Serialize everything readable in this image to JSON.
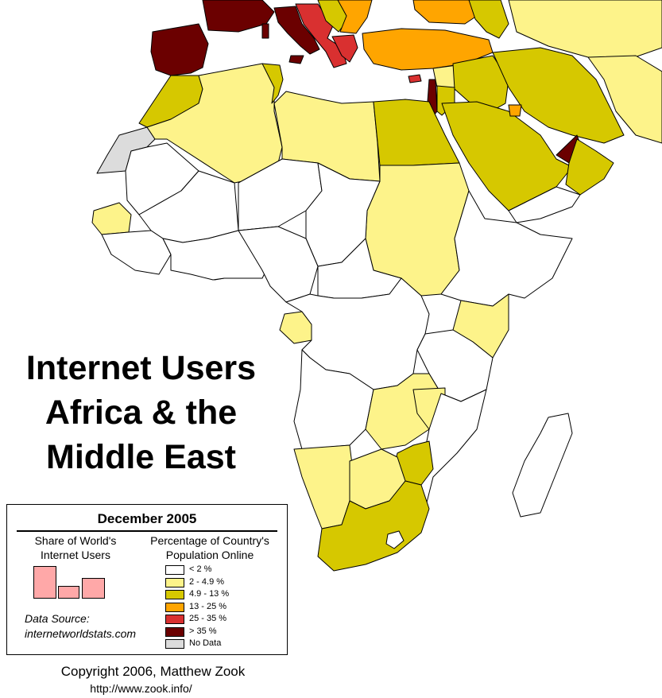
{
  "title": {
    "line1": "Internet Users",
    "line2": "Africa & the",
    "line3": "Middle East"
  },
  "legend": {
    "date": "December 2005",
    "share_heading_line1": "Share of World's",
    "share_heading_line2": "Internet Users",
    "pct_heading_line1": "Percentage of Country's",
    "pct_heading_line2": "Population Online",
    "categories": [
      {
        "label": "< 2 %",
        "color": "#ffffff"
      },
      {
        "label": "2 - 4.9 %",
        "color": "#fdf38a"
      },
      {
        "label": "4.9 - 13 %",
        "color": "#d6c800"
      },
      {
        "label": "13 - 25 %",
        "color": "#ffa500"
      },
      {
        "label": "25 - 35 %",
        "color": "#d93030"
      },
      {
        "label": "> 35 %",
        "color": "#6b0000"
      },
      {
        "label": "No Data",
        "color": "#dcdcdc"
      }
    ],
    "source_line1": "Data Source:",
    "source_line2": "internetworldstats.com"
  },
  "credit": {
    "copyright": "Copyright 2006, Matthew Zook",
    "url": "http://www.zook.info/"
  },
  "colors": {
    "none": "#ffffff",
    "low": "#fdf38a",
    "mid": "#d6c800",
    "high": "#ffa500",
    "higher": "#d93030",
    "top": "#6b0000",
    "nodata": "#dcdcdc",
    "share_bar": "#ffa8a8"
  }
}
